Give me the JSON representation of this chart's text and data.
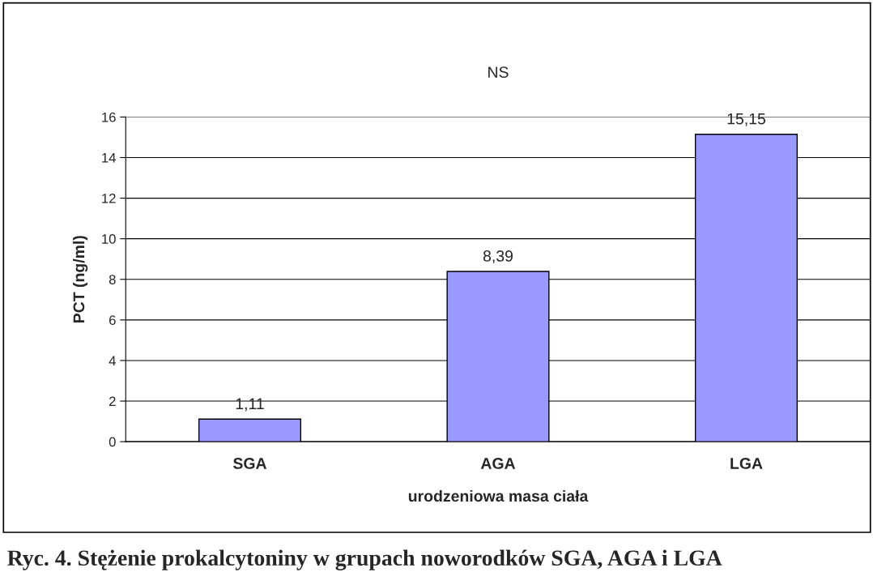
{
  "chart_data": {
    "type": "bar",
    "title": "NS",
    "xlabel": "urodzeniowa masa ciała",
    "ylabel": "PCT (ng/ml)",
    "categories": [
      "SGA",
      "AGA",
      "LGA"
    ],
    "values": [
      1.11,
      8.39,
      15.15
    ],
    "value_labels": [
      "1,11",
      "8,39",
      "15,15"
    ],
    "color": "#9999ff",
    "ylim": [
      0,
      16
    ],
    "yticks": [
      0,
      2,
      4,
      6,
      8,
      10,
      12,
      14,
      16
    ],
    "grid": "y",
    "annotations": [
      "Ryc. 4. Stężenie prokalcytoniny w grupach noworodków SGA, AGA i LGA"
    ]
  }
}
